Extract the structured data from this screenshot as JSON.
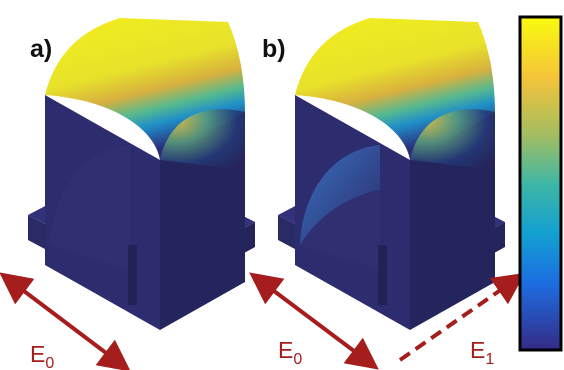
{
  "panels": [
    {
      "label": "a)",
      "fields": [
        {
          "symbol": "E",
          "subscript": "0"
        }
      ]
    },
    {
      "label": "b)",
      "fields": [
        {
          "symbol": "E",
          "subscript": "0"
        },
        {
          "symbol": "E",
          "subscript": "1"
        }
      ]
    }
  ]
}
